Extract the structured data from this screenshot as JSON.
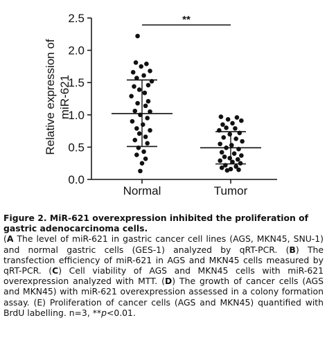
{
  "chart_data": {
    "type": "scatter",
    "ylabel_line1": "Relative expression of",
    "ylabel_line2": "miR-621",
    "yticks": [
      "0.0",
      "0.5",
      "1.0",
      "1.5",
      "2.0",
      "2.5"
    ],
    "ylim": [
      0,
      2.5
    ],
    "categories": [
      "Normal",
      "Tumor"
    ],
    "significance": "**",
    "series": [
      {
        "category": "Normal",
        "mean": 1.02,
        "sd_upper": 1.54,
        "sd_lower": 0.51,
        "points": [
          [
            -0.05,
            2.22
          ],
          [
            -0.07,
            1.81
          ],
          [
            0.05,
            1.79
          ],
          [
            -0.01,
            1.75
          ],
          [
            0.09,
            1.68
          ],
          [
            -0.1,
            1.66
          ],
          [
            0.02,
            1.61
          ],
          [
            -0.06,
            1.57
          ],
          [
            0.11,
            1.52
          ],
          [
            0.07,
            1.46
          ],
          [
            -0.09,
            1.44
          ],
          [
            -0.03,
            1.39
          ],
          [
            0.03,
            1.34
          ],
          [
            -0.12,
            1.29
          ],
          [
            0.07,
            1.21
          ],
          [
            -0.05,
            1.18
          ],
          [
            0.04,
            1.14
          ],
          [
            -0.08,
            1.06
          ],
          [
            0.09,
            1.05
          ],
          [
            -0.02,
            1.0
          ],
          [
            0.06,
            0.95
          ],
          [
            -0.11,
            0.9
          ],
          [
            0.01,
            0.85
          ],
          [
            -0.06,
            0.79
          ],
          [
            0.09,
            0.76
          ],
          [
            -0.03,
            0.71
          ],
          [
            0.04,
            0.66
          ],
          [
            -0.08,
            0.61
          ],
          [
            0.06,
            0.56
          ],
          [
            -0.04,
            0.49
          ],
          [
            0.02,
            0.43
          ],
          [
            -0.06,
            0.38
          ],
          [
            0.04,
            0.32
          ],
          [
            0.0,
            0.25
          ],
          [
            -0.02,
            0.13
          ]
        ]
      },
      {
        "category": "Tumor",
        "mean": 0.49,
        "sd_upper": 0.74,
        "sd_lower": 0.24,
        "points": [
          [
            -0.11,
            0.97
          ],
          [
            0.07,
            0.96
          ],
          [
            -0.03,
            0.93
          ],
          [
            0.12,
            0.91
          ],
          [
            0.02,
            0.87
          ],
          [
            -0.09,
            0.85
          ],
          [
            -0.05,
            0.8
          ],
          [
            0.05,
            0.79
          ],
          [
            -0.13,
            0.76
          ],
          [
            0.1,
            0.72
          ],
          [
            -0.01,
            0.7
          ],
          [
            -0.08,
            0.65
          ],
          [
            0.06,
            0.63
          ],
          [
            0.13,
            0.59
          ],
          [
            -0.12,
            0.55
          ],
          [
            0.01,
            0.53
          ],
          [
            -0.05,
            0.49
          ],
          [
            0.09,
            0.47
          ],
          [
            -0.1,
            0.42
          ],
          [
            0.04,
            0.4
          ],
          [
            0.12,
            0.37
          ],
          [
            -0.07,
            0.35
          ],
          [
            -0.01,
            0.33
          ],
          [
            0.08,
            0.31
          ],
          [
            -0.12,
            0.29
          ],
          [
            0.02,
            0.27
          ],
          [
            0.11,
            0.25
          ],
          [
            -0.06,
            0.22
          ],
          [
            0.06,
            0.2
          ],
          [
            -0.1,
            0.18
          ],
          [
            0.0,
            0.16
          ],
          [
            0.09,
            0.15
          ],
          [
            -0.04,
            0.14
          ]
        ]
      }
    ]
  },
  "caption": {
    "title": "Figure 2. MiR-621 overexpression inhibited the proliferation of gastric adenocarcinoma cells.",
    "a_label": "A",
    "a_text": " The level of miR-621 in gastric cancer cell lines (AGS, MKN45, SNU-1) and normal gastric cells (GES-1) analyzed by qRT-PCR. (",
    "b_label": "B",
    "b_text": ") The transfection efficiency of miR-621 in AGS and MKN45 cells measured by qRT-PCR. (",
    "c_label": "C",
    "c_text": ") Cell viability of AGS and MKN45 cells with miR-621 overexpression analyzed with MTT. (",
    "d_label": "D",
    "d_text": ") The growth of cancer cells (AGS and MKN45) with miR-621 overexpression assessed in a colony formation assay. (E) Proliferation of cancer cells (AGS and MKN45) quantified with BrdU labelling. n=3, **",
    "p_italic": "p",
    "p_tail": "<0.01."
  }
}
